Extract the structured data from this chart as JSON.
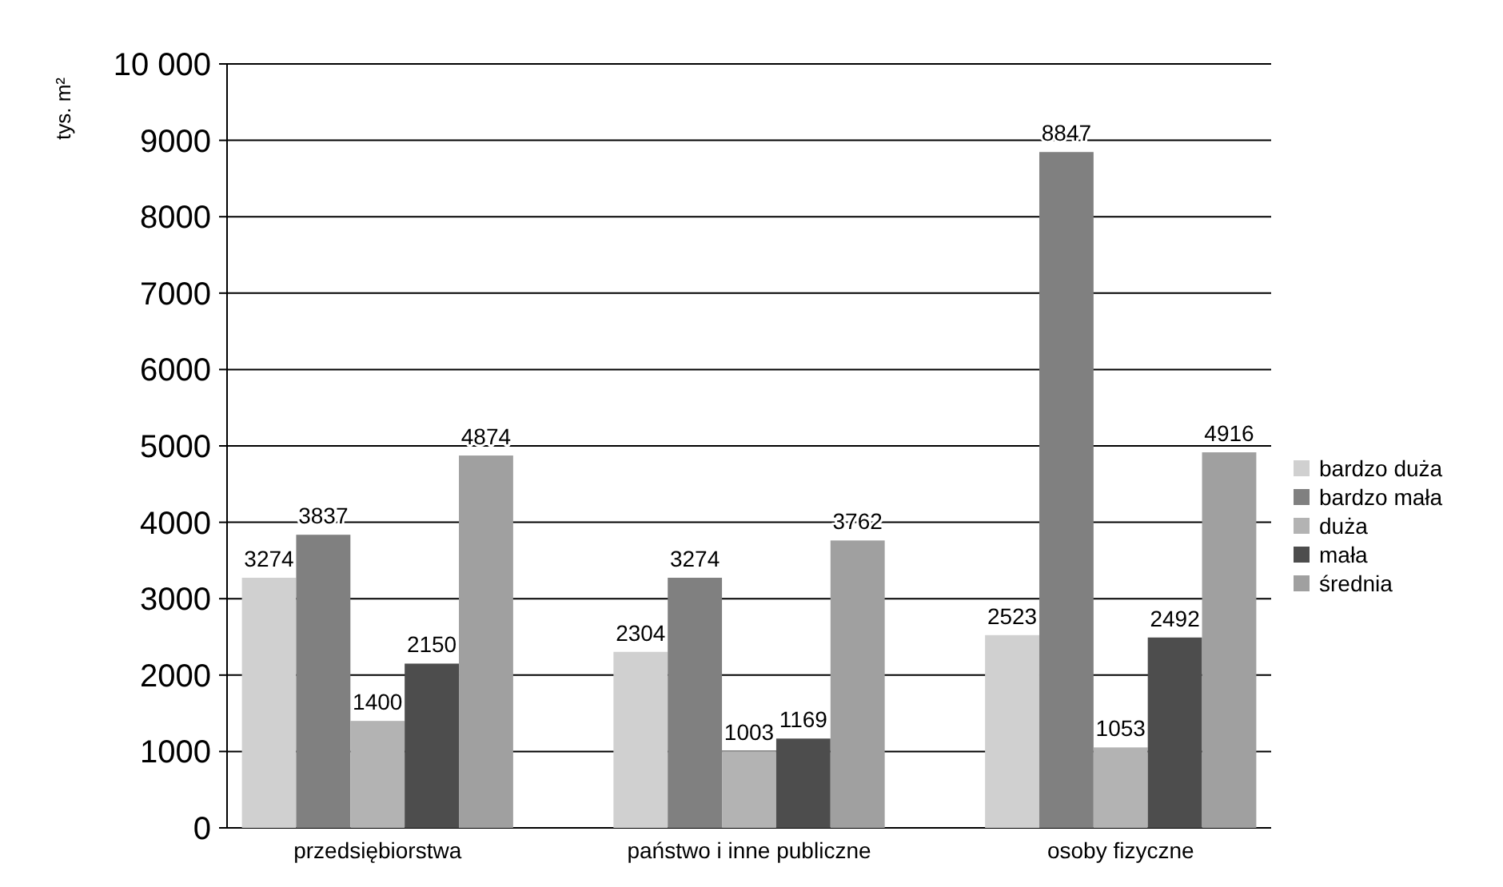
{
  "chart_data": {
    "type": "bar",
    "ylabel": "tys. m²",
    "categories": [
      "przedsiębiorstwa",
      "państwo i inne publiczne",
      "osoby fizyczne"
    ],
    "series": [
      {
        "name": "bardzo duża",
        "color": "#d0d0d0",
        "values": [
          3274,
          2304,
          2523
        ]
      },
      {
        "name": "bardzo mała",
        "color": "#808080",
        "values": [
          3837,
          3274,
          8847
        ]
      },
      {
        "name": "duża",
        "color": "#b3b3b3",
        "values": [
          1400,
          1003,
          1053
        ]
      },
      {
        "name": "mała",
        "color": "#4d4d4d",
        "values": [
          2150,
          1169,
          2492
        ]
      },
      {
        "name": "średnia",
        "color": "#a0a0a0",
        "values": [
          4874,
          3762,
          4916
        ]
      }
    ],
    "ylim": [
      0,
      10000
    ],
    "yticks": [
      0,
      1000,
      2000,
      3000,
      4000,
      5000,
      6000,
      7000,
      8000,
      9000,
      {
        "value": 10000,
        "label": "10 000"
      }
    ],
    "grid": "y",
    "legend": "right",
    "data_labels": true
  }
}
